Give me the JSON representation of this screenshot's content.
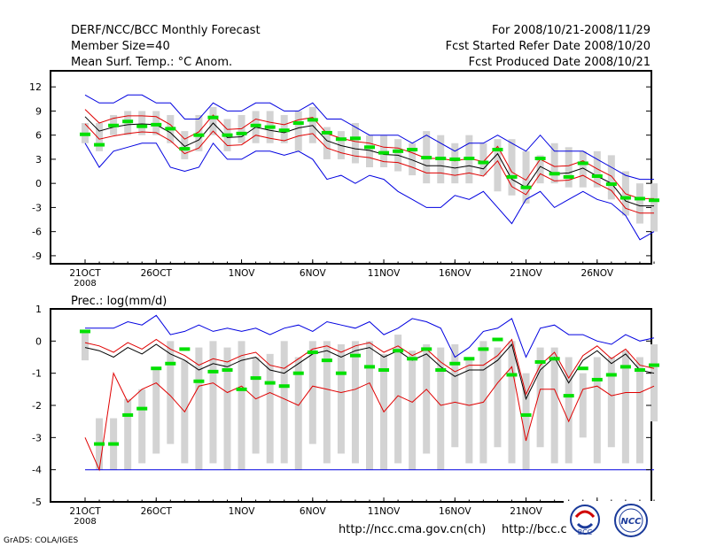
{
  "header": {
    "title": "DERF/NCC/BCC Monthly Forecast",
    "member_size": "Member Size=40",
    "variable": "Mean Surf. Temp.: °C Anom.",
    "forecast_period": "For 2008/10/21-2008/11/29",
    "started_refer": "Fcst Started Refer Date 2008/10/20",
    "produced": "Fcst Produced Date 2008/10/21"
  },
  "footer": {
    "url1": "http://ncc.cma.gov.cn(ch)",
    "url2": "http://bcc.c",
    "credit": "GrADS: COLA/IGES",
    "logo_left": "BCC",
    "logo_right": "NCC"
  },
  "colors": {
    "box": "#d3d3d3",
    "median": "#00e000",
    "mean": "#000000",
    "inner": "#e00000",
    "outer": "#0000e0"
  },
  "chart_data": [
    {
      "type": "line",
      "title": "Mean Surf. Temp.: °C Anom.",
      "x_ticks": [
        {
          "day": 0,
          "label": "21OCT",
          "sub": "2008"
        },
        {
          "day": 5,
          "label": "26OCT"
        },
        {
          "day": 11,
          "label": "1NOV"
        },
        {
          "day": 16,
          "label": "6NOV"
        },
        {
          "day": 21,
          "label": "11NOV"
        },
        {
          "day": 26,
          "label": "16NOV"
        },
        {
          "day": 31,
          "label": "21NOV"
        },
        {
          "day": 36,
          "label": "26NOV"
        }
      ],
      "ylim": [
        -10,
        14
      ],
      "yticks": [
        -9,
        -6,
        -3,
        0,
        3,
        6,
        9,
        12
      ],
      "box_low": [
        5,
        4,
        6,
        6,
        6,
        6,
        5,
        3,
        4,
        6,
        4,
        5,
        5,
        5,
        5,
        4,
        5,
        3,
        3,
        2.5,
        2,
        2,
        1.5,
        1,
        0,
        0,
        0,
        0,
        1,
        -1,
        -1.5,
        -2.5,
        0,
        0,
        -0.5,
        -0.5,
        -0.5,
        -2,
        -4,
        -5,
        -6
      ],
      "box_high": [
        7.5,
        7.5,
        8.5,
        9,
        9,
        9,
        8.5,
        6.5,
        8.5,
        9.5,
        8,
        8.5,
        9,
        9,
        8.5,
        9,
        9.5,
        7,
        6.5,
        7.5,
        6,
        6,
        5.5,
        5,
        6.5,
        6,
        5,
        6,
        5,
        5.5,
        5.5,
        4,
        3.5,
        5,
        4.5,
        4,
        4,
        3.5,
        1.5,
        0,
        0
      ],
      "median": [
        6.1,
        4.8,
        7.2,
        7.7,
        7.1,
        7.3,
        6.8,
        4.3,
        6,
        8.2,
        6,
        6.2,
        7.2,
        7,
        6.6,
        7.5,
        7.9,
        6.3,
        5.5,
        5.6,
        4.5,
        3.8,
        4,
        4.2,
        3.2,
        3.1,
        3,
        3.1,
        2.6,
        4.2,
        0.8,
        -0.5,
        3.1,
        1.2,
        0.8,
        2.5,
        0.9,
        -0.1,
        -1.8,
        -1.9,
        -2.1
      ],
      "mean": [
        8.3,
        6.5,
        7,
        7.3,
        7.4,
        7.3,
        6.3,
        4.6,
        5.4,
        7.5,
        5.7,
        5.8,
        7,
        6.6,
        6.3,
        6.9,
        7.2,
        5.3,
        4.7,
        4.3,
        4.1,
        3.6,
        3.5,
        2.9,
        2.2,
        2.2,
        1.9,
        2.2,
        1.8,
        3.7,
        0.5,
        -0.5,
        2.1,
        1.2,
        1.3,
        1.9,
        0.9,
        0,
        -2.2,
        -2.8,
        -2.8
      ],
      "inner_high": [
        9.2,
        7.5,
        8.1,
        8.4,
        8.4,
        8.3,
        7.3,
        5.5,
        6.4,
        8.5,
        6.7,
        6.8,
        8,
        7.6,
        7.3,
        7.9,
        8.2,
        6.2,
        5.6,
        5.2,
        5,
        4.5,
        4.4,
        3.8,
        3.1,
        3.1,
        2.8,
        3.1,
        2.7,
        4.6,
        1.4,
        0.4,
        3,
        2.1,
        2.2,
        2.8,
        1.8,
        0.9,
        -1.3,
        -1.9,
        -1.9
      ],
      "inner_low": [
        7.4,
        5.5,
        5.9,
        6.2,
        6.4,
        6.3,
        5.3,
        3.7,
        4.4,
        6.5,
        4.7,
        4.8,
        6,
        5.6,
        5.3,
        5.9,
        6.2,
        4.4,
        3.8,
        3.4,
        3.2,
        2.7,
        2.6,
        2,
        1.3,
        1.3,
        1,
        1.3,
        0.9,
        2.8,
        -0.4,
        -1.4,
        1.2,
        0.3,
        0.4,
        1,
        0,
        -0.9,
        -3.1,
        -3.7,
        -3.7
      ],
      "outer_high": [
        11,
        10,
        10,
        11,
        11,
        10,
        10,
        8,
        8,
        10,
        9,
        9,
        10,
        10,
        9,
        9,
        10,
        8,
        8,
        7,
        6,
        6,
        6,
        5,
        6,
        5,
        4,
        5,
        5,
        6,
        5,
        4,
        6,
        4,
        4,
        4,
        3,
        2,
        1,
        0.5,
        0.5
      ],
      "outer_low": [
        5,
        2,
        4,
        4.5,
        5,
        5,
        2,
        1.5,
        2,
        5,
        3,
        3,
        4,
        4,
        3.5,
        4,
        3,
        0.5,
        1,
        0,
        1,
        0.5,
        -1,
        -2,
        -3,
        -3,
        -1.5,
        -2,
        -1,
        -3,
        -5,
        -2,
        -1,
        -3,
        -2,
        -1,
        -2,
        -2.5,
        -4,
        -7,
        -6
      ]
    },
    {
      "type": "line",
      "title": "Prec.: log(mm/d)",
      "x_ticks": [
        {
          "day": 0,
          "label": "21OCT",
          "sub": "2008"
        },
        {
          "day": 5,
          "label": "26OCT"
        },
        {
          "day": 11,
          "label": "1NOV"
        },
        {
          "day": 16,
          "label": "6NOV"
        },
        {
          "day": 21,
          "label": "11NOV"
        },
        {
          "day": 26,
          "label": "16NOV"
        },
        {
          "day": 31,
          "label": "21NOV"
        },
        {
          "day": 36,
          "label": "26NOV"
        }
      ],
      "ylim": [
        -5,
        1
      ],
      "yticks": [
        -5,
        -4,
        -3,
        -2,
        -1,
        0,
        1
      ],
      "box_low": [
        -0.6,
        -4,
        -4,
        -4,
        -3.8,
        -3.5,
        -3.2,
        -3.8,
        -4,
        -3.8,
        -4,
        -4,
        -3.5,
        -3.8,
        -3.8,
        -4,
        -3.2,
        -3.8,
        -3.5,
        -3.8,
        -4,
        -4,
        -3.8,
        -4,
        -3.5,
        -4,
        -3.3,
        -3.8,
        -3.8,
        -3.3,
        -3.8,
        -4,
        -3.3,
        -3.8,
        -3.8,
        -3,
        -3.8,
        -3.3,
        -3.8,
        -3.8,
        -2.5
      ],
      "box_high": [
        0.3,
        -2.4,
        -2.4,
        -1.8,
        -1.5,
        -0.8,
        0,
        -0.6,
        -0.2,
        0,
        -0.2,
        0,
        -0.5,
        -0.4,
        0,
        -0.5,
        0,
        0,
        -0.1,
        0,
        0,
        -0.4,
        0.2,
        -0.3,
        -0.1,
        -0.2,
        -0.1,
        -0.6,
        0,
        -0.2,
        0,
        -1,
        -0.2,
        -0.2,
        -0.5,
        -1,
        -0.5,
        -0.5,
        -0.3,
        -0.5,
        -0.1
      ],
      "median": [
        0.3,
        -3.2,
        -3.2,
        -2.3,
        -2.1,
        -0.85,
        -0.7,
        -0.25,
        -1.25,
        -0.95,
        -0.9,
        -1.5,
        -1.15,
        -1.3,
        -1.4,
        -1,
        -0.35,
        -0.6,
        -1,
        -0.45,
        -0.8,
        -0.9,
        -0.3,
        -0.55,
        -0.25,
        -0.9,
        -0.7,
        -0.55,
        -0.25,
        0.05,
        -1.05,
        -2.3,
        -0.65,
        -0.55,
        -1.7,
        -0.85,
        -1.2,
        -1.05,
        -0.8,
        -0.9,
        -0.75
      ],
      "mean": [
        -0.2,
        -0.3,
        -0.5,
        -0.2,
        -0.4,
        -0.1,
        -0.4,
        -0.6,
        -0.9,
        -0.7,
        -0.8,
        -0.6,
        -0.5,
        -0.9,
        -1,
        -0.7,
        -0.4,
        -0.3,
        -0.5,
        -0.3,
        -0.2,
        -0.5,
        -0.3,
        -0.6,
        -0.4,
        -0.8,
        -1.1,
        -0.9,
        -0.9,
        -0.6,
        -0.1,
        -1.8,
        -0.9,
        -0.5,
        -1.3,
        -0.6,
        -0.3,
        -0.7,
        -0.4,
        -0.9,
        -1
      ],
      "inner_high": [
        -0.05,
        -0.15,
        -0.35,
        -0.05,
        -0.25,
        0.05,
        -0.25,
        -0.45,
        -0.75,
        -0.55,
        -0.65,
        -0.45,
        -0.35,
        -0.75,
        -0.85,
        -0.55,
        -0.25,
        -0.15,
        -0.35,
        -0.15,
        -0.05,
        -0.35,
        -0.15,
        -0.45,
        -0.25,
        -0.65,
        -0.95,
        -0.75,
        -0.75,
        -0.45,
        0.05,
        -1.65,
        -0.75,
        -0.35,
        -1.15,
        -0.45,
        -0.15,
        -0.55,
        -0.25,
        -0.75,
        -0.85
      ],
      "inner_low": [
        -3,
        -4,
        -1,
        -1.9,
        -1.5,
        -1.3,
        -1.7,
        -2.2,
        -1.4,
        -1.3,
        -1.6,
        -1.4,
        -1.8,
        -1.6,
        -1.8,
        -2,
        -1.4,
        -1.5,
        -1.6,
        -1.5,
        -1.3,
        -2.2,
        -1.7,
        -1.9,
        -1.5,
        -2,
        -1.9,
        -2,
        -1.9,
        -1.3,
        -0.8,
        -3.1,
        -1.5,
        -1.5,
        -2.5,
        -1.5,
        -1.4,
        -1.7,
        -1.6,
        -1.6,
        -1.4
      ],
      "outer_high": [
        0.4,
        0.4,
        0.4,
        0.6,
        0.5,
        0.8,
        0.2,
        0.3,
        0.5,
        0.3,
        0.4,
        0.3,
        0.4,
        0.2,
        0.4,
        0.5,
        0.3,
        0.6,
        0.5,
        0.4,
        0.6,
        0.2,
        0.4,
        0.7,
        0.6,
        0.4,
        -0.5,
        -0.2,
        0.3,
        0.4,
        0.7,
        -0.5,
        0.4,
        0.5,
        0.2,
        0.2,
        0,
        -0.1,
        0.2,
        0,
        0.1
      ],
      "outer_low": [
        -4,
        -4,
        -4,
        -4,
        -4,
        -4,
        -4,
        -4,
        -4,
        -4,
        -4,
        -4,
        -4,
        -4,
        -4,
        -4,
        -4,
        -4,
        -4,
        -4,
        -4,
        -4,
        -4,
        -4,
        -4,
        -4,
        -4,
        -4,
        -4,
        -4,
        -4,
        -4,
        -4,
        -4,
        -4,
        -4,
        -4,
        -4,
        -4,
        -4,
        -4
      ]
    }
  ]
}
